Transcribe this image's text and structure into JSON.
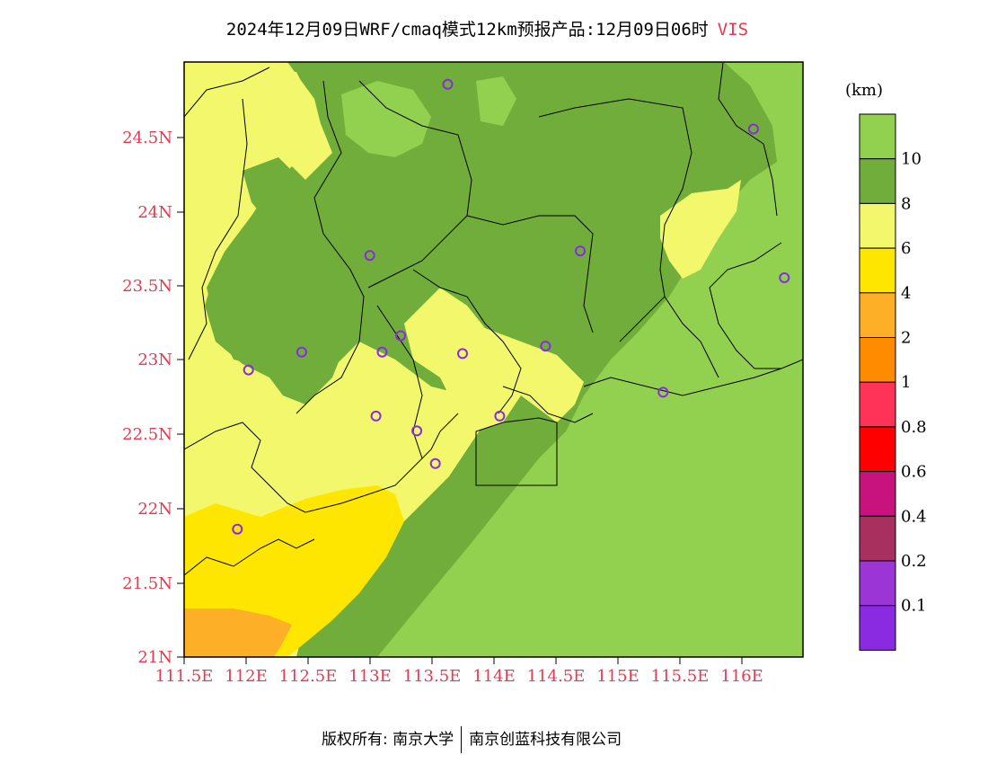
{
  "title": {
    "main": "2024年12月09日WRF/cmaq模式12km预报产品:12月09日06时",
    "variable": "VIS"
  },
  "colorbar": {
    "unit": "(km)",
    "levels": [
      {
        "label": "10",
        "color": "#92d050"
      },
      {
        "label": "8",
        "color": "#70ad3a"
      },
      {
        "label": "6",
        "color": "#f3f76b"
      },
      {
        "label": "4",
        "color": "#ffe600"
      },
      {
        "label": "2",
        "color": "#fdb027"
      },
      {
        "label": "1",
        "color": "#ff8c00"
      },
      {
        "label": "0.8",
        "color": "#ff3358"
      },
      {
        "label": "0.6",
        "color": "#ff0000"
      },
      {
        "label": "0.4",
        "color": "#c8137f"
      },
      {
        "label": "0.2",
        "color": "#a8305f"
      },
      {
        "label": "0.1",
        "color": "#9b35d6"
      },
      {
        "label": "",
        "color": "#8a2be2"
      }
    ]
  },
  "axes": {
    "yticks": [
      "24.5N",
      "24N",
      "23.5N",
      "23N",
      "22.5N",
      "22N",
      "21.5N",
      "21N"
    ],
    "xticks": [
      "111.5E",
      "112E",
      "112.5E",
      "113E",
      "113.5E",
      "114E",
      "114.5E",
      "115E",
      "115.5E",
      "116E"
    ]
  },
  "map": {
    "lon_range": [
      111.5,
      116.5
    ],
    "lat_range": [
      21,
      25
    ],
    "colors": {
      "light_green": "#92d050",
      "dark_green": "#70ad3a",
      "pale_yellow": "#f3f76b",
      "yellow": "#ffe600",
      "orange": "#fdb027",
      "station_marker": "#8a2be2"
    },
    "stations": [
      {
        "lon": 113.63,
        "lat": 24.85
      },
      {
        "lon": 116.1,
        "lat": 24.55
      },
      {
        "lon": 113.0,
        "lat": 23.7
      },
      {
        "lon": 114.7,
        "lat": 23.73
      },
      {
        "lon": 116.35,
        "lat": 23.55
      },
      {
        "lon": 112.45,
        "lat": 23.05
      },
      {
        "lon": 113.1,
        "lat": 23.05
      },
      {
        "lon": 113.25,
        "lat": 23.16
      },
      {
        "lon": 113.75,
        "lat": 23.04
      },
      {
        "lon": 114.42,
        "lat": 23.09
      },
      {
        "lon": 112.02,
        "lat": 22.93
      },
      {
        "lon": 115.37,
        "lat": 22.78
      },
      {
        "lon": 113.05,
        "lat": 22.62
      },
      {
        "lon": 113.38,
        "lat": 22.52
      },
      {
        "lon": 114.05,
        "lat": 22.62
      },
      {
        "lon": 113.53,
        "lat": 22.3
      },
      {
        "lon": 111.93,
        "lat": 21.86
      }
    ]
  },
  "footer": {
    "copyright": "版权所有: 南京大学",
    "company": "南京创蓝科技有限公司"
  }
}
